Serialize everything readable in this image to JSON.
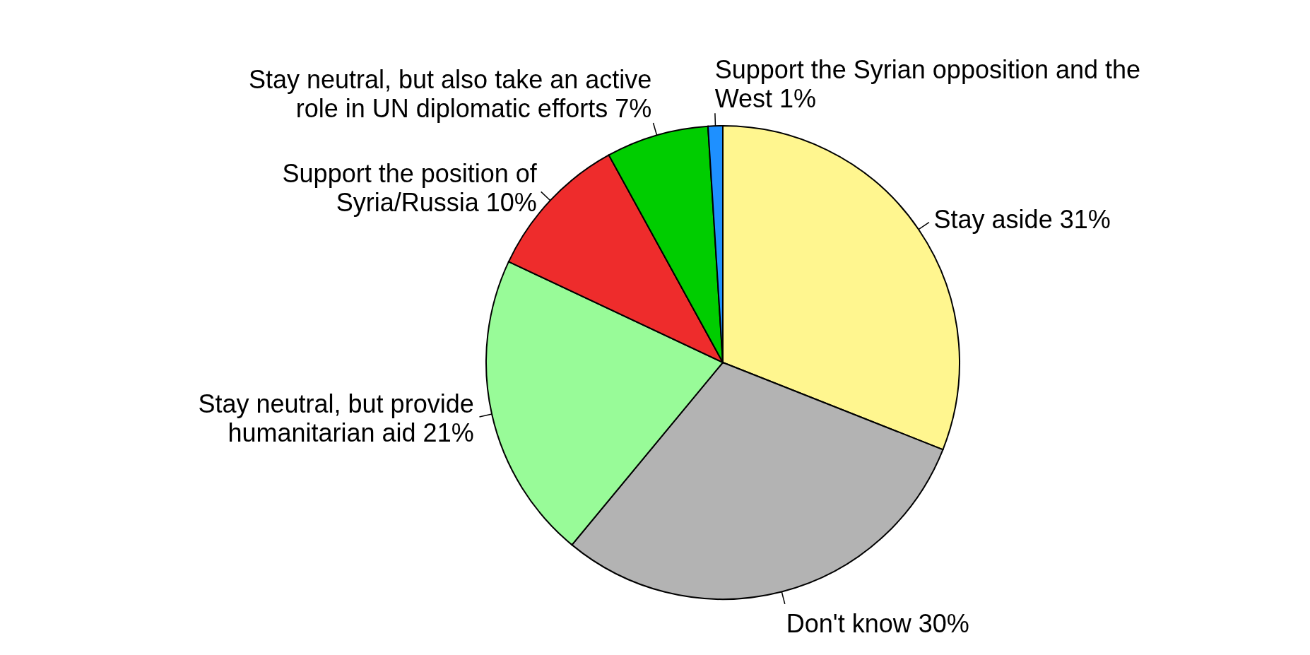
{
  "chart_data": {
    "type": "pie",
    "categories": [
      "Stay aside 31%",
      "Don't know 30%",
      "Stay neutral, but provide humanitarian aid 21%",
      "Support the position of Syria/Russia 10%",
      "Stay neutral, but also take an active role in UN diplomatic efforts 7%",
      "Support the Syrian opposition and the West 1%"
    ],
    "values": [
      31,
      30,
      21,
      10,
      7,
      1
    ],
    "colors": [
      "#fff68f",
      "#b3b3b3",
      "#98fb98",
      "#ee2c2c",
      "#00cd00",
      "#1e90ff"
    ]
  }
}
